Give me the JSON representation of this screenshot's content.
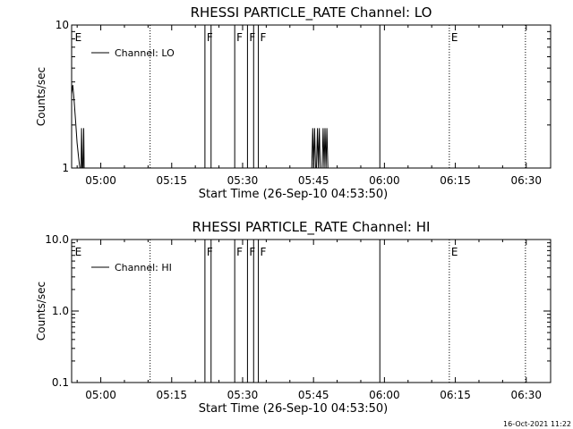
{
  "footer": {
    "timestamp": "16-Oct-2021 11:22"
  },
  "chart_data": [
    {
      "type": "line",
      "title": "RHESSI PARTICLE_RATE Channel: LO",
      "xlabel": "Start Time (26-Sep-10 04:53:50)",
      "ylabel": "Counts/sec",
      "y_scale": "log",
      "ylim": [
        1,
        10
      ],
      "yticks": [
        1,
        10
      ],
      "ytick_labels": [
        "1",
        "10"
      ],
      "xlim_minutes_after_start": [
        0,
        100
      ],
      "xtick_labels": [
        "05:00",
        "05:15",
        "05:30",
        "05:45",
        "06:00",
        "06:15",
        "06:30"
      ],
      "legend": {
        "position": "top-left",
        "entries": [
          "Channel: LO"
        ]
      },
      "series": [
        {
          "name": "Channel: LO",
          "x_minutes_after_start": [
            0.0,
            0.25,
            0.55,
            0.85,
            1.15,
            1.45,
            1.75,
            2.0,
            2.1,
            2.25,
            2.4,
            2.55,
            2.65,
            2.8,
            50.8,
            51.0,
            51.2,
            51.4,
            51.6,
            51.8,
            52.0,
            52.2,
            52.4,
            52.6,
            52.8,
            53.0,
            53.2,
            53.4,
            53.6,
            53.8,
            54.0,
            54.2,
            54.4
          ],
          "y": [
            3.3,
            3.8,
            2.9,
            2.1,
            1.5,
            1.2,
            1.0,
            1.0,
            1.9,
            1.0,
            1.0,
            1.9,
            1.0,
            1.0,
            1.0,
            1.9,
            1.0,
            1.9,
            1.0,
            1.0,
            1.9,
            1.0,
            1.9,
            1.0,
            1.0,
            1.0,
            1.9,
            1.0,
            1.9,
            1.0,
            1.9,
            1.0,
            1.0
          ]
        }
      ],
      "vertical_markers": [
        {
          "x_minutes_after_start": 0.3,
          "label": "E",
          "style": "none"
        },
        {
          "x_minutes_after_start": 16.6,
          "label": "",
          "style": "dotted"
        },
        {
          "x_minutes_after_start": 28.2,
          "label": "F",
          "style": "solid"
        },
        {
          "x_minutes_after_start": 29.5,
          "label": "",
          "style": "solid"
        },
        {
          "x_minutes_after_start": 34.5,
          "label": "F",
          "style": "solid"
        },
        {
          "x_minutes_after_start": 37.2,
          "label": "F",
          "style": "solid"
        },
        {
          "x_minutes_after_start": 38.5,
          "label": "",
          "style": "solid"
        },
        {
          "x_minutes_after_start": 39.5,
          "label": "F",
          "style": "solid"
        },
        {
          "x_minutes_after_start": 65.2,
          "label": "",
          "style": "solid"
        },
        {
          "x_minutes_after_start": 79.9,
          "label": "E",
          "style": "dotted"
        },
        {
          "x_minutes_after_start": 96.0,
          "label": "",
          "style": "dotted"
        }
      ]
    },
    {
      "type": "line",
      "title": "RHESSI PARTICLE_RATE Channel: HI",
      "xlabel": "Start Time (26-Sep-10 04:53:50)",
      "ylabel": "Counts/sec",
      "y_scale": "log",
      "ylim": [
        0.1,
        10
      ],
      "yticks": [
        0.1,
        1,
        10
      ],
      "ytick_labels": [
        "0.1",
        "1.0",
        "10.0"
      ],
      "xlim_minutes_after_start": [
        0,
        100
      ],
      "xtick_labels": [
        "05:00",
        "05:15",
        "05:30",
        "05:45",
        "06:00",
        "06:15",
        "06:30"
      ],
      "legend": {
        "position": "top-left",
        "entries": [
          "Channel: HI"
        ]
      },
      "series": [
        {
          "name": "Channel: HI",
          "x_minutes_after_start": [],
          "y": []
        }
      ],
      "vertical_markers": [
        {
          "x_minutes_after_start": 0.3,
          "label": "E",
          "style": "none"
        },
        {
          "x_minutes_after_start": 16.6,
          "label": "",
          "style": "dotted"
        },
        {
          "x_minutes_after_start": 28.2,
          "label": "F",
          "style": "solid"
        },
        {
          "x_minutes_after_start": 29.5,
          "label": "",
          "style": "solid"
        },
        {
          "x_minutes_after_start": 34.5,
          "label": "F",
          "style": "solid"
        },
        {
          "x_minutes_after_start": 37.2,
          "label": "F",
          "style": "solid"
        },
        {
          "x_minutes_after_start": 38.5,
          "label": "",
          "style": "solid"
        },
        {
          "x_minutes_after_start": 39.5,
          "label": "F",
          "style": "solid"
        },
        {
          "x_minutes_after_start": 65.2,
          "label": "",
          "style": "solid"
        },
        {
          "x_minutes_after_start": 79.9,
          "label": "E",
          "style": "dotted"
        },
        {
          "x_minutes_after_start": 96.0,
          "label": "",
          "style": "dotted"
        }
      ]
    }
  ]
}
